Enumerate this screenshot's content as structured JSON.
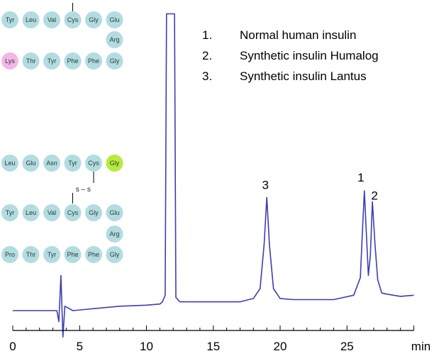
{
  "chart_data": {
    "type": "line",
    "title": "",
    "xlabel": "",
    "xunit": "min",
    "ylabel": "",
    "xlim": [
      0,
      30.5
    ],
    "x_ticks": [
      0,
      5,
      10,
      15,
      20,
      25
    ],
    "grid": false,
    "legend_placement": "top-right",
    "legend": [
      {
        "number": "1.",
        "text": "Normal human insulin"
      },
      {
        "number": "2.",
        "text": "Synthetic insulin Humalog"
      },
      {
        "number": "3.",
        "text": "Synthetic insulin Lantus"
      }
    ],
    "peaks": [
      {
        "label": "3",
        "x": 19.0,
        "height": 0.515
      },
      {
        "label": "1",
        "x": 26.3,
        "height": 0.545
      },
      {
        "label": "2",
        "x": 26.9,
        "height": 0.495
      }
    ],
    "solvent_front": {
      "start": 11.4,
      "end": 12.2,
      "height": 1.35
    },
    "injection_artifact_x": 3.6,
    "series": [
      {
        "x": [
          0,
          2.5,
          3.0,
          3.3,
          3.45,
          3.6,
          3.75,
          3.9,
          4.5,
          8,
          10,
          11,
          11.2,
          11.4,
          11.5,
          12.1,
          12.2,
          12.5,
          13,
          15,
          17,
          18,
          18.5,
          18.8,
          19.0,
          19.2,
          19.5,
          20,
          21,
          24,
          25.5,
          26.0,
          26.15,
          26.3,
          26.45,
          26.6,
          26.75,
          26.9,
          27.1,
          27.3,
          27.6,
          28,
          29,
          30
        ],
        "y": [
          0.0,
          0.0,
          0.0,
          0.0,
          -0.05,
          0.16,
          -0.12,
          0.02,
          0.0,
          0.02,
          0.025,
          0.03,
          0.04,
          0.07,
          1.35,
          1.35,
          0.06,
          0.04,
          0.04,
          0.04,
          0.04,
          0.055,
          0.1,
          0.3,
          0.515,
          0.3,
          0.1,
          0.055,
          0.05,
          0.05,
          0.07,
          0.15,
          0.35,
          0.545,
          0.35,
          0.16,
          0.25,
          0.495,
          0.3,
          0.14,
          0.08,
          0.075,
          0.065,
          0.07
        ]
      }
    ]
  },
  "x_unit_label": "min",
  "structure": {
    "chain_b_top": {
      "row1": [
        "Tyr",
        "Leu",
        "Val",
        "Cys",
        "Gly",
        "Glu"
      ],
      "turn": "Arg",
      "row2": [
        "Lys",
        "Thr",
        "Tyr",
        "Phe",
        "Phe",
        "Gly"
      ]
    },
    "chain_a": [
      "Leu",
      "Glu",
      "Asn",
      "Tyr",
      "Cys",
      "Gly"
    ],
    "bond_text": "s – s",
    "chain_b_bottom": {
      "row1": [
        "Tyr",
        "Leu",
        "Val",
        "Cys",
        "Gly",
        "Glu"
      ],
      "turn": "Arg",
      "row2": [
        "Pro",
        "Thr",
        "Tyr",
        "Phe",
        "Phe",
        "Gly"
      ]
    },
    "colors": {
      "residue": "#b2dce0",
      "highlight_lys": "#f3b6e6",
      "highlight_gly": "#b6ea3c",
      "trace": "#3b3fb0"
    }
  }
}
